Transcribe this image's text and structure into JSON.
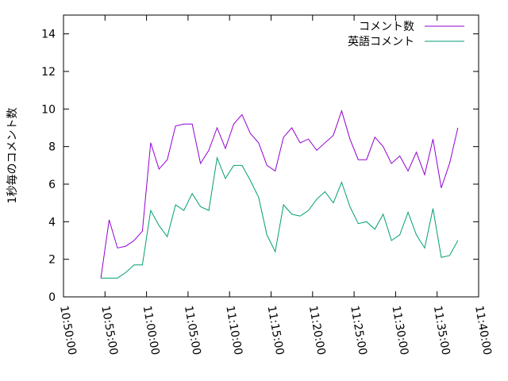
{
  "chart_data": {
    "type": "line",
    "ylabel": "1秒毎のコメント数",
    "x": [
      "10:54:30",
      "10:55:30",
      "10:56:30",
      "10:57:30",
      "10:58:30",
      "10:59:30",
      "11:00:30",
      "11:01:30",
      "11:02:30",
      "11:03:30",
      "11:04:30",
      "11:05:30",
      "11:06:30",
      "11:07:30",
      "11:08:30",
      "11:09:30",
      "11:10:30",
      "11:11:30",
      "11:12:30",
      "11:13:30",
      "11:14:30",
      "11:15:30",
      "11:16:30",
      "11:17:30",
      "11:18:30",
      "11:19:30",
      "11:20:30",
      "11:21:30",
      "11:22:30",
      "11:23:30",
      "11:24:30",
      "11:25:30",
      "11:26:30",
      "11:27:30",
      "11:28:30",
      "11:29:30",
      "11:30:30",
      "11:31:30",
      "11:32:30",
      "11:33:30",
      "11:34:30",
      "11:35:30",
      "11:36:30",
      "11:37:30"
    ],
    "series": [
      {
        "name": "コメント数",
        "color": "#9400d3",
        "values": [
          1.0,
          4.1,
          2.6,
          2.7,
          3.0,
          3.5,
          8.2,
          6.8,
          7.3,
          9.1,
          9.2,
          9.2,
          7.1,
          7.8,
          9.0,
          7.9,
          9.2,
          9.7,
          8.7,
          8.2,
          7.0,
          6.7,
          8.5,
          9.0,
          8.2,
          8.4,
          7.8,
          8.2,
          8.6,
          9.9,
          8.4,
          7.3,
          7.3,
          8.5,
          8.0,
          7.1,
          7.5,
          6.7,
          7.7,
          6.5,
          8.4,
          5.8,
          7.1,
          9.0
        ]
      },
      {
        "name": "英語コメント",
        "color": "#009e73",
        "values": [
          1.0,
          1.0,
          1.0,
          1.3,
          1.7,
          1.7,
          4.6,
          3.8,
          3.2,
          4.9,
          4.6,
          5.5,
          4.8,
          4.6,
          7.4,
          6.3,
          7.0,
          7.0,
          6.2,
          5.3,
          3.3,
          2.4,
          4.9,
          4.4,
          4.3,
          4.6,
          5.2,
          5.6,
          5.0,
          6.1,
          4.8,
          3.9,
          4.0,
          3.6,
          4.4,
          3.0,
          3.3,
          4.5,
          3.3,
          2.6,
          4.7,
          2.1,
          2.2,
          3.0
        ]
      }
    ],
    "xlim": [
      "10:50:00",
      "11:40:00"
    ],
    "xticks": [
      "10:50:00",
      "10:55:00",
      "11:00:00",
      "11:05:00",
      "11:10:00",
      "11:15:00",
      "11:20:00",
      "11:25:00",
      "11:30:00",
      "11:35:00",
      "11:40:00"
    ],
    "ylim": [
      0,
      15
    ],
    "yticks": [
      0,
      2,
      4,
      6,
      8,
      10,
      12,
      14
    ],
    "legend": "top-right"
  }
}
